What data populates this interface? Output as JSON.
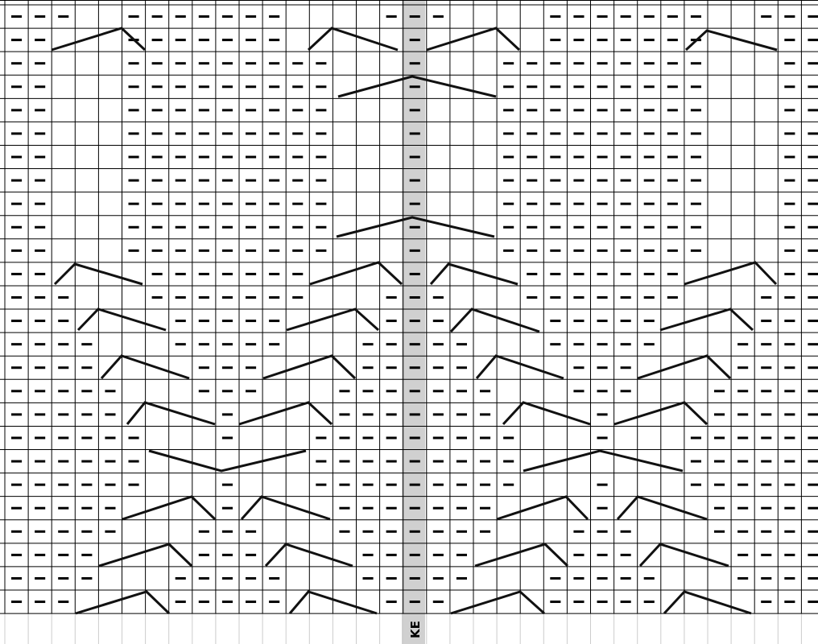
{
  "label": "KE"
}
